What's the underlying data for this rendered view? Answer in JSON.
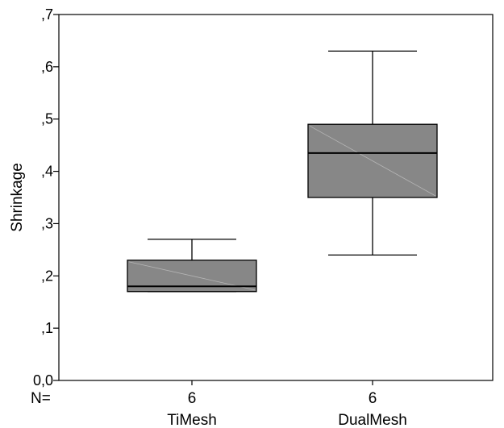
{
  "chart_data": {
    "type": "boxplot",
    "title": "",
    "xlabel": "",
    "ylabel": "Shrinkage",
    "ylim": [
      0.0,
      0.7
    ],
    "yticks": [
      {
        "value": 0.0,
        "label": "0,0"
      },
      {
        "value": 0.1,
        "label": ",1"
      },
      {
        "value": 0.2,
        "label": ",2"
      },
      {
        "value": 0.3,
        "label": ",3"
      },
      {
        "value": 0.4,
        "label": ",4"
      },
      {
        "value": 0.5,
        "label": ",5"
      },
      {
        "value": 0.6,
        "label": ",6"
      },
      {
        "value": 0.7,
        "label": ",7"
      }
    ],
    "n_label": "N=",
    "categories": [
      "TiMesh",
      "DualMesh"
    ],
    "boxes": [
      {
        "name": "TiMesh",
        "n": "6",
        "min": 0.17,
        "q1": 0.17,
        "median": 0.18,
        "q3": 0.23,
        "max": 0.27
      },
      {
        "name": "DualMesh",
        "n": "6",
        "min": 0.24,
        "q1": 0.35,
        "median": 0.435,
        "q3": 0.49,
        "max": 0.63
      }
    ],
    "grid": false,
    "legend": "none",
    "box_color": "#878787",
    "line_color": "#000000"
  }
}
